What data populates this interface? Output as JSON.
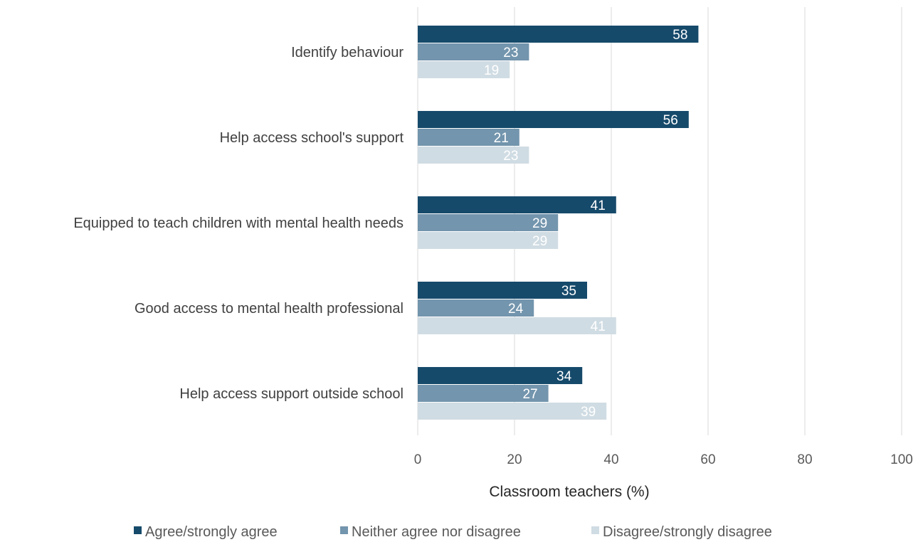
{
  "chart_data": {
    "type": "bar",
    "orientation": "horizontal",
    "categories": [
      "Identify behaviour",
      "Help access school's support",
      "Equipped to teach children with mental health needs",
      "Good access to mental health professional",
      "Help access support outside school"
    ],
    "series": [
      {
        "name": "Agree/strongly agree",
        "color": "#164a6b",
        "values": [
          58,
          56,
          41,
          35,
          34
        ]
      },
      {
        "name": "Neither agree nor disagree",
        "color": "#7395ad",
        "values": [
          23,
          21,
          29,
          24,
          27
        ]
      },
      {
        "name": "Disagree/strongly disagree",
        "color": "#d0dce3",
        "values": [
          19,
          23,
          29,
          41,
          39
        ]
      }
    ],
    "xlabel": "Classroom teachers (%)",
    "xlim": [
      0,
      100
    ],
    "xticks": [
      0,
      20,
      40,
      60,
      80,
      100
    ],
    "grid": true,
    "legend": "bottom",
    "data_labels": true
  }
}
